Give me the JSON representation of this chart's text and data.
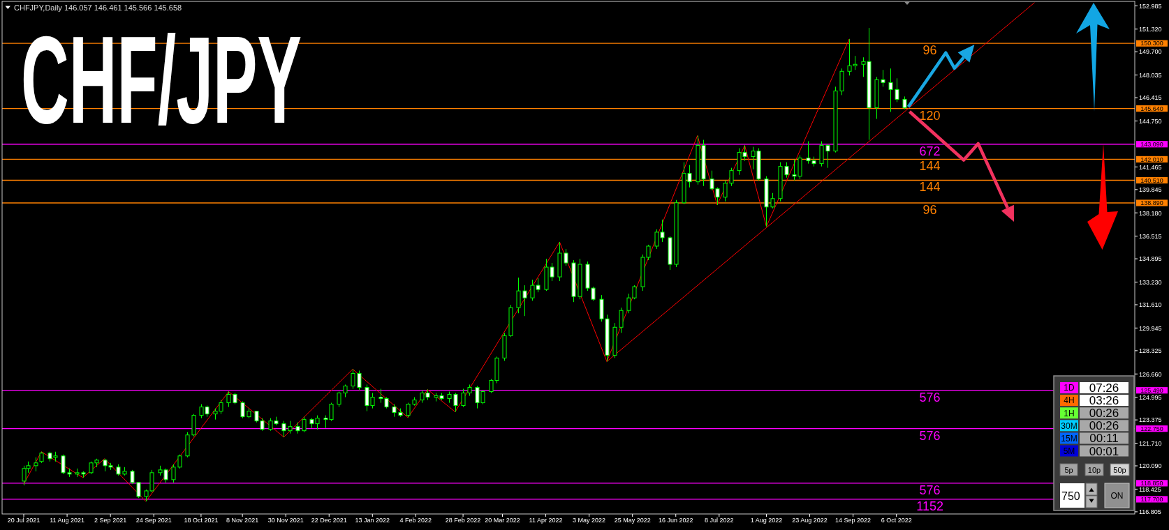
{
  "chart_data": [
    {
      "type": "candlestick",
      "title": "CHF/JPY",
      "subtitle": "CHFJPY,Daily 146.057 146.461 145.566 145.658",
      "color": "#00ff00",
      "x": [
        "2021-07-20",
        "2021-07-22",
        "2021-07-26",
        "2021-07-29",
        "2021-08-02",
        "2021-08-05",
        "2021-08-09",
        "2021-08-12",
        "2021-08-16",
        "2021-08-19",
        "2021-08-23",
        "2021-08-26",
        "2021-08-30",
        "2021-09-02",
        "2021-09-06",
        "2021-09-09",
        "2021-09-13",
        "2021-09-16",
        "2021-09-20",
        "2021-09-23",
        "2021-09-27",
        "2021-09-30",
        "2021-10-04",
        "2021-10-07",
        "2021-10-11",
        "2021-10-14",
        "2021-10-18",
        "2021-10-21",
        "2021-10-25",
        "2021-10-28",
        "2021-11-01",
        "2021-11-04",
        "2021-11-08",
        "2021-11-11",
        "2021-11-15",
        "2021-11-18",
        "2021-11-22",
        "2021-11-25",
        "2021-11-29",
        "2021-12-02",
        "2021-12-06",
        "2021-12-09",
        "2021-12-13",
        "2021-12-16",
        "2021-12-20",
        "2021-12-23",
        "2021-12-27",
        "2021-12-30",
        "2022-01-03",
        "2022-01-06",
        "2022-01-10",
        "2022-01-13",
        "2022-01-17",
        "2022-01-20",
        "2022-01-24",
        "2022-01-27",
        "2022-01-31",
        "2022-02-03",
        "2022-02-07",
        "2022-02-10",
        "2022-02-14",
        "2022-02-17",
        "2022-02-21",
        "2022-02-24",
        "2022-02-28",
        "2022-03-03",
        "2022-03-07",
        "2022-03-10",
        "2022-03-14",
        "2022-03-17",
        "2022-03-21",
        "2022-03-24",
        "2022-03-28",
        "2022-03-31",
        "2022-04-04",
        "2022-04-07",
        "2022-04-11",
        "2022-04-14",
        "2022-04-18",
        "2022-04-21",
        "2022-04-25",
        "2022-04-28",
        "2022-05-02",
        "2022-05-05",
        "2022-05-09",
        "2022-05-12",
        "2022-05-16",
        "2022-05-19",
        "2022-05-23",
        "2022-05-26",
        "2022-05-30",
        "2022-06-02",
        "2022-06-06",
        "2022-06-09",
        "2022-06-13",
        "2022-06-16",
        "2022-06-20",
        "2022-06-23",
        "2022-06-27",
        "2022-06-30",
        "2022-07-04",
        "2022-07-07",
        "2022-07-11",
        "2022-07-14",
        "2022-07-18",
        "2022-07-21",
        "2022-07-25",
        "2022-07-28",
        "2022-08-01",
        "2022-08-04",
        "2022-08-08",
        "2022-08-11",
        "2022-08-15",
        "2022-08-18",
        "2022-08-22",
        "2022-08-25",
        "2022-08-29",
        "2022-09-01",
        "2022-09-05",
        "2022-09-08",
        "2022-09-12",
        "2022-09-15",
        "2022-09-19",
        "2022-09-22",
        "2022-09-26",
        "2022-09-29",
        "2022-10-03",
        "2022-10-06",
        "2022-10-10"
      ],
      "ohlc": [
        [
          119.0,
          120.1,
          118.7,
          119.9
        ],
        [
          119.9,
          120.4,
          119.6,
          120.1
        ],
        [
          120.1,
          120.7,
          119.7,
          120.3
        ],
        [
          120.4,
          121.1,
          120.3,
          121.0
        ],
        [
          121.0,
          121.1,
          120.4,
          120.6
        ],
        [
          120.7,
          121.1,
          120.4,
          120.8
        ],
        [
          120.8,
          120.9,
          119.5,
          119.6
        ],
        [
          119.6,
          119.9,
          119.3,
          119.5
        ],
        [
          119.5,
          119.9,
          119.3,
          119.6
        ],
        [
          119.6,
          119.7,
          119.25,
          119.5
        ],
        [
          119.6,
          120.4,
          119.5,
          120.3
        ],
        [
          120.3,
          120.6,
          120.0,
          120.5
        ],
        [
          120.5,
          120.6,
          119.7,
          120.1
        ],
        [
          120.1,
          120.3,
          119.8,
          120.0
        ],
        [
          120.0,
          120.2,
          119.4,
          119.5
        ],
        [
          119.5,
          120.0,
          119.4,
          119.7
        ],
        [
          119.7,
          119.8,
          118.8,
          118.9
        ],
        [
          118.9,
          118.9,
          117.8,
          117.9
        ],
        [
          117.9,
          118.4,
          117.55,
          118.3
        ],
        [
          118.3,
          119.8,
          118.2,
          119.6
        ],
        [
          119.6,
          120.1,
          119.4,
          119.8
        ],
        [
          119.8,
          119.9,
          118.9,
          119.1
        ],
        [
          119.1,
          120.2,
          118.9,
          120.0
        ],
        [
          120.0,
          120.9,
          119.9,
          120.8
        ],
        [
          120.8,
          122.5,
          120.7,
          122.3
        ],
        [
          122.3,
          123.8,
          122.2,
          123.7
        ],
        [
          123.7,
          124.5,
          123.5,
          124.3
        ],
        [
          124.3,
          124.4,
          123.6,
          123.8
        ],
        [
          123.8,
          124.2,
          123.4,
          124.0
        ],
        [
          124.0,
          124.8,
          123.8,
          124.6
        ],
        [
          124.6,
          125.4,
          124.3,
          125.2
        ],
        [
          125.2,
          125.3,
          124.5,
          124.6
        ],
        [
          124.6,
          124.7,
          123.5,
          123.6
        ],
        [
          123.6,
          124.2,
          123.5,
          124.0
        ],
        [
          124.0,
          124.0,
          123.2,
          123.3
        ],
        [
          123.3,
          123.5,
          122.6,
          122.7
        ],
        [
          122.7,
          123.5,
          122.6,
          123.3
        ],
        [
          123.3,
          123.6,
          123.0,
          123.1
        ],
        [
          123.1,
          123.3,
          122.15,
          122.6
        ],
        [
          122.6,
          123.3,
          122.4,
          122.9
        ],
        [
          122.9,
          123.2,
          122.4,
          122.6
        ],
        [
          122.6,
          123.6,
          122.5,
          123.4
        ],
        [
          123.4,
          123.5,
          122.8,
          123.1
        ],
        [
          123.1,
          123.7,
          122.7,
          123.5
        ],
        [
          123.5,
          123.7,
          122.8,
          123.4
        ],
        [
          123.4,
          124.6,
          123.3,
          124.5
        ],
        [
          124.5,
          125.4,
          124.3,
          125.3
        ],
        [
          125.3,
          125.9,
          125.0,
          125.8
        ],
        [
          125.8,
          127.0,
          125.6,
          126.7
        ],
        [
          126.7,
          126.9,
          125.5,
          125.7
        ],
        [
          125.7,
          125.9,
          124.0,
          124.4
        ],
        [
          124.4,
          125.3,
          124.2,
          125.0
        ],
        [
          125.0,
          125.6,
          124.6,
          124.9
        ],
        [
          124.9,
          125.0,
          124.2,
          124.3
        ],
        [
          124.3,
          124.5,
          123.6,
          123.9
        ],
        [
          123.9,
          124.2,
          123.6,
          123.7
        ],
        [
          123.7,
          124.6,
          123.55,
          124.5
        ],
        [
          124.5,
          125.0,
          124.4,
          124.8
        ],
        [
          124.8,
          125.5,
          124.6,
          125.3
        ],
        [
          125.3,
          125.55,
          124.8,
          125.0
        ],
        [
          125.0,
          125.3,
          124.7,
          125.1
        ],
        [
          125.1,
          125.3,
          124.8,
          124.9
        ],
        [
          124.9,
          125.4,
          124.6,
          125.2
        ],
        [
          125.2,
          125.3,
          123.95,
          124.4
        ],
        [
          124.4,
          125.6,
          124.3,
          125.3
        ],
        [
          125.3,
          125.9,
          125.1,
          125.7
        ],
        [
          125.7,
          125.8,
          124.2,
          124.6
        ],
        [
          124.6,
          125.5,
          124.5,
          125.4
        ],
        [
          125.4,
          126.3,
          125.3,
          126.2
        ],
        [
          126.2,
          127.9,
          126.0,
          127.8
        ],
        [
          127.8,
          129.6,
          127.6,
          129.4
        ],
        [
          129.4,
          131.6,
          129.3,
          131.4
        ],
        [
          131.4,
          133.55,
          131.0,
          132.6
        ],
        [
          132.6,
          133.0,
          130.8,
          132.1
        ],
        [
          132.1,
          133.4,
          131.9,
          133.0
        ],
        [
          133.0,
          133.5,
          132.5,
          132.7
        ],
        [
          132.7,
          134.9,
          132.6,
          134.3
        ],
        [
          134.3,
          134.6,
          133.3,
          133.6
        ],
        [
          133.6,
          136.1,
          133.3,
          135.3
        ],
        [
          135.3,
          135.6,
          134.4,
          134.6
        ],
        [
          134.6,
          134.8,
          131.8,
          132.2
        ],
        [
          132.2,
          134.9,
          132.0,
          134.5
        ],
        [
          134.5,
          134.7,
          132.6,
          132.8
        ],
        [
          132.8,
          132.9,
          131.9,
          132.0
        ],
        [
          132.0,
          132.3,
          130.4,
          130.6
        ],
        [
          130.6,
          130.9,
          127.55,
          128.0
        ],
        [
          128.0,
          130.3,
          127.8,
          130.0
        ],
        [
          130.0,
          131.4,
          129.6,
          131.2
        ],
        [
          131.2,
          132.4,
          131.0,
          132.1
        ],
        [
          132.1,
          133.0,
          132.0,
          132.9
        ],
        [
          132.9,
          135.2,
          132.6,
          135.0
        ],
        [
          135.0,
          135.9,
          134.8,
          135.8
        ],
        [
          135.8,
          137.0,
          135.6,
          136.8
        ],
        [
          136.8,
          137.7,
          136.1,
          136.4
        ],
        [
          136.4,
          136.5,
          134.1,
          134.5
        ],
        [
          134.5,
          139.1,
          134.3,
          138.9
        ],
        [
          138.9,
          141.8,
          138.8,
          141.0
        ],
        [
          141.0,
          141.6,
          140.0,
          140.4
        ],
        [
          140.4,
          143.7,
          140.2,
          143.0
        ],
        [
          143.0,
          143.4,
          140.1,
          140.6
        ],
        [
          140.6,
          141.2,
          139.8,
          139.9
        ],
        [
          139.9,
          140.0,
          138.75,
          139.3
        ],
        [
          139.3,
          140.5,
          139.0,
          140.3
        ],
        [
          140.3,
          141.4,
          140.1,
          141.2
        ],
        [
          141.2,
          142.8,
          140.9,
          142.5
        ],
        [
          142.5,
          143.0,
          141.9,
          142.2
        ],
        [
          142.2,
          142.9,
          141.3,
          142.6
        ],
        [
          142.6,
          142.8,
          140.5,
          140.6
        ],
        [
          140.6,
          140.8,
          137.2,
          138.6
        ],
        [
          138.6,
          139.6,
          138.5,
          139.2
        ],
        [
          139.2,
          141.8,
          139.0,
          141.5
        ],
        [
          141.5,
          141.8,
          140.7,
          140.9
        ],
        [
          140.9,
          142.0,
          140.5,
          140.8
        ],
        [
          140.8,
          142.3,
          140.6,
          142.1
        ],
        [
          142.1,
          143.3,
          141.7,
          141.9
        ],
        [
          141.9,
          142.2,
          141.5,
          141.7
        ],
        [
          141.7,
          143.3,
          141.5,
          143.0
        ],
        [
          143.0,
          143.1,
          141.4,
          142.6
        ],
        [
          142.6,
          147.2,
          142.5,
          146.9
        ],
        [
          146.9,
          148.5,
          146.6,
          148.3
        ],
        [
          148.3,
          150.6,
          148.0,
          148.7
        ],
        [
          148.7,
          149.4,
          148.4,
          148.8
        ],
        [
          148.8,
          149.3,
          147.9,
          149.0
        ],
        [
          149.0,
          151.4,
          143.4,
          145.7
        ],
        [
          145.7,
          147.9,
          144.9,
          147.7
        ],
        [
          147.7,
          148.4,
          147.2,
          147.5
        ],
        [
          147.5,
          148.5,
          145.4,
          147.0
        ],
        [
          147.0,
          147.8,
          146.1,
          146.3
        ],
        [
          146.3,
          146.5,
          145.6,
          145.7
        ]
      ],
      "series": [
        {
          "type": "line",
          "color": "#ff0000",
          "x": [
            "2021-07-20",
            "2021-07-29",
            "2021-08-19",
            "2021-08-30",
            "2021-09-20",
            "2021-11-01",
            "2021-11-29",
            "2022-01-03",
            "2022-01-31",
            "2022-02-10",
            "2022-02-24",
            "2022-04-18",
            "2022-05-12",
            "2022-06-27",
            "2022-07-07",
            "2022-07-21",
            "2022-08-01",
            "2022-09-12"
          ],
          "values": [
            118.8,
            121.1,
            119.25,
            120.6,
            117.55,
            125.4,
            122.15,
            127.0,
            123.55,
            125.55,
            123.95,
            136.1,
            127.55,
            143.7,
            138.75,
            143.0,
            137.2,
            150.6
          ]
        },
        {
          "type": "line",
          "color": "#ff0000",
          "x": [
            "2022-05-12",
            "2022-12-15"
          ],
          "values": [
            127.55,
            153.2
          ]
        }
      ],
      "xlim": [
        "2021-07-09",
        "2023-02-04"
      ],
      "xticks": [
        {
          "value": "2021-07-20",
          "label": "20 Jul 2021"
        },
        {
          "value": "2021-08-11",
          "label": "11 Aug 2021"
        },
        {
          "value": "2021-09-02",
          "label": "2 Sep 2021"
        },
        {
          "value": "2021-09-24",
          "label": "24 Sep 2021"
        },
        {
          "value": "2021-10-18",
          "label": "18 Oct 2021"
        },
        {
          "value": "2021-11-08",
          "label": "8 Nov 2021"
        },
        {
          "value": "2021-11-30",
          "label": "30 Nov 2021"
        },
        {
          "value": "2021-12-22",
          "label": "22 Dec 2021"
        },
        {
          "value": "2022-01-13",
          "label": "13 Jan 2022"
        },
        {
          "value": "2022-02-04",
          "label": "4 Feb 2022"
        },
        {
          "value": "2022-02-28",
          "label": "28 Feb 2022"
        },
        {
          "value": "2022-03-20",
          "label": "20 Mar 2022"
        },
        {
          "value": "2022-04-11",
          "label": "11 Apr 2022"
        },
        {
          "value": "2022-05-03",
          "label": "3 May 2022"
        },
        {
          "value": "2022-05-25",
          "label": "25 May 2022"
        },
        {
          "value": "2022-06-16",
          "label": "16 Jun 2022"
        },
        {
          "value": "2022-07-08",
          "label": "8 Jul 2022"
        },
        {
          "value": "2022-08-01",
          "label": "1 Aug 2022"
        },
        {
          "value": "2022-08-23",
          "label": "23 Aug 2022"
        },
        {
          "value": "2022-09-14",
          "label": "14 Sep 2022"
        },
        {
          "value": "2022-10-06",
          "label": "6 Oct 2022"
        }
      ],
      "ylim": [
        116.65,
        153.3
      ],
      "yticks": [
        152.985,
        {
          "value": 151.32,
          "label": "151.320"
        },
        {
          "value": 149.7,
          "label": "149.700"
        },
        148.035,
        146.415,
        {
          "value": 144.75,
          "label": "144.750"
        },
        141.465,
        139.845,
        {
          "value": 138.18,
          "label": "138.180"
        },
        136.515,
        134.895,
        {
          "value": 133.23,
          "label": "133.230"
        },
        {
          "value": 131.61,
          "label": "131.610"
        },
        129.945,
        128.325,
        {
          "value": 126.66,
          "label": "126.660"
        },
        124.995,
        123.375,
        {
          "value": 121.71,
          "label": "121.710"
        },
        {
          "value": 120.09,
          "label": "120.090"
        },
        118.425,
        116.805
      ],
      "ref_lines": [
        {
          "axis": "y",
          "value": 150.3,
          "label": "150.300",
          "color": "#ff8000"
        },
        {
          "axis": "y",
          "value": 145.64,
          "label": "145.640",
          "color": "#ff8000"
        },
        {
          "axis": "y",
          "value": 143.09,
          "label": "143.090",
          "color": "#ff00ff"
        },
        {
          "axis": "y",
          "value": 142.01,
          "label": "142.010",
          "color": "#ff8000"
        },
        {
          "axis": "y",
          "value": 140.51,
          "label": "140.510",
          "color": "#ff8000"
        },
        {
          "axis": "y",
          "value": 138.89,
          "label": "138.890",
          "color": "#ff8000"
        },
        {
          "axis": "y",
          "value": 125.49,
          "label": "125.490",
          "color": "#ff00ff"
        },
        {
          "axis": "y",
          "value": 122.75,
          "label": "122.750",
          "color": "#ff00ff"
        },
        {
          "axis": "y",
          "value": 118.85,
          "label": "118.850",
          "color": "#ff00ff"
        },
        {
          "axis": "y",
          "value": 117.7,
          "label": "117.700",
          "color": "#ff00ff"
        }
      ],
      "annotations": [
        {
          "text": "96",
          "x": "2022-10-23",
          "y": 150.3
        },
        {
          "text": "120",
          "x": "2022-10-23",
          "y": 145.64
        },
        {
          "text": "672",
          "x": "2022-10-23",
          "y": 143.09
        },
        {
          "text": "144",
          "x": "2022-10-23",
          "y": 142.01
        },
        {
          "text": "144",
          "x": "2022-10-23",
          "y": 140.51
        },
        {
          "text": "96",
          "x": "2022-10-23",
          "y": 138.89
        },
        {
          "text": "576",
          "x": "2022-10-23",
          "y": 125.49
        },
        {
          "text": "576",
          "x": "2022-10-23",
          "y": 122.75
        },
        {
          "text": "576",
          "x": "2022-10-23",
          "y": 118.85
        },
        {
          "text": "1152",
          "x": "2022-10-23",
          "y": 117.7
        }
      ]
    },
    {
      "type": "other",
      "annotations": [
        "1D",
        "07:26",
        "4H",
        "03:26",
        "1H",
        "00:26",
        "30M",
        "00:26",
        "15M",
        "00:11",
        "5M",
        "00:01",
        "5p",
        "10p",
        "50p",
        "750",
        "ON"
      ]
    }
  ]
}
